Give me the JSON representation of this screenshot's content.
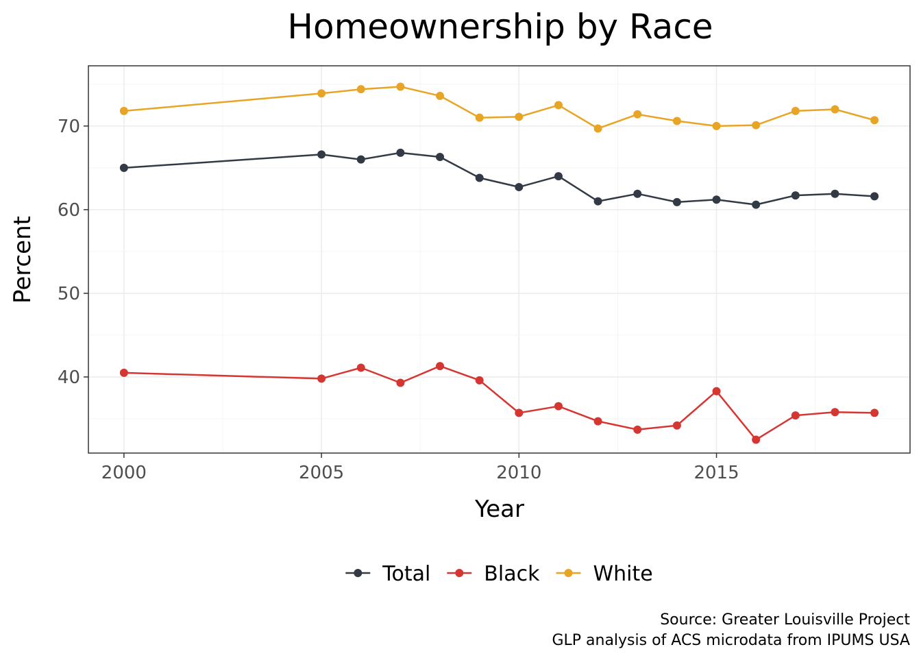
{
  "chart_data": {
    "type": "line",
    "title": "Homeownership by Race",
    "xlabel": "Year",
    "ylabel": "Percent",
    "xlim": [
      1999.1,
      2019.9
    ],
    "ylim": [
      30.9,
      77.2
    ],
    "x_ticks": [
      2000,
      2005,
      2010,
      2015
    ],
    "x_tick_labels": [
      "2000",
      "2005",
      "2010",
      "2015"
    ],
    "y_ticks": [
      40,
      50,
      60,
      70
    ],
    "y_tick_labels": [
      "40",
      "50",
      "60",
      "70"
    ],
    "grid": true,
    "legend_position": "bottom",
    "x": [
      2000,
      2005,
      2006,
      2007,
      2008,
      2009,
      2010,
      2011,
      2012,
      2013,
      2014,
      2015,
      2016,
      2017,
      2018,
      2019
    ],
    "series": [
      {
        "name": "Total",
        "color": "#323a45",
        "values": [
          65.0,
          66.6,
          66.0,
          66.8,
          66.3,
          63.8,
          62.7,
          64.0,
          61.0,
          61.9,
          60.9,
          61.2,
          60.6,
          61.7,
          61.9,
          61.6
        ]
      },
      {
        "name": "Black",
        "color": "#d63631",
        "values": [
          40.5,
          39.8,
          41.1,
          39.3,
          41.3,
          39.6,
          35.7,
          36.5,
          34.7,
          33.7,
          34.2,
          38.3,
          32.5,
          35.4,
          35.8,
          35.7
        ]
      },
      {
        "name": "White",
        "color": "#e8a525",
        "values": [
          71.8,
          73.9,
          74.4,
          74.7,
          73.6,
          71.0,
          71.1,
          72.5,
          69.7,
          71.4,
          70.6,
          70.0,
          70.1,
          71.8,
          72.0,
          70.7
        ]
      }
    ],
    "caption": [
      "Source: Greater Louisville Project",
      "GLP analysis of ACS microdata from IPUMS USA"
    ]
  },
  "colors": {
    "panel_border": "#333333",
    "grid_major": "#ebebeb",
    "grid_minor": "#f4f4f4",
    "tick_text": "#4d4d4d"
  }
}
